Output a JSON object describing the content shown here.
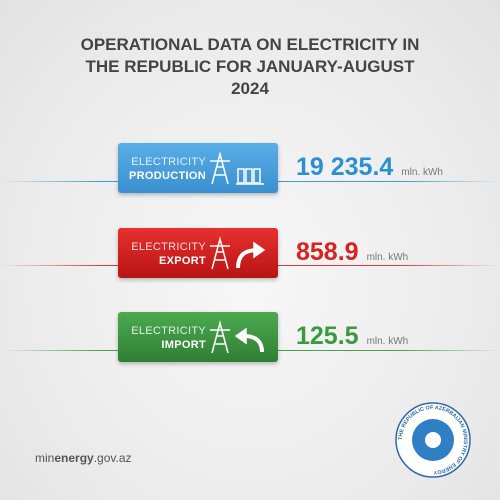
{
  "header": {
    "title": "OPERATIONAL DATA ON ELECTRICITY IN THE REPUBLIC FOR JANUARY-AUGUST 2024"
  },
  "cards": [
    {
      "label": "ELECTRICITY",
      "kind": "PRODUCTION",
      "value": "19 235.4",
      "unit": "mln. kWh"
    },
    {
      "label": "ELECTRICITY",
      "kind": "EXPORT",
      "value": "858.9",
      "unit": "mln. kWh"
    },
    {
      "label": "ELECTRICITY",
      "kind": "IMPORT",
      "value": "125.5",
      "unit": "mln. kWh"
    }
  ],
  "footer": {
    "site_prefix": "min",
    "site_bold": "energy",
    "site_suffix": ".gov.az",
    "logo_text": "THE REPUBLIC OF AZERBAIJAN MINISTRY OF ENERGY"
  }
}
